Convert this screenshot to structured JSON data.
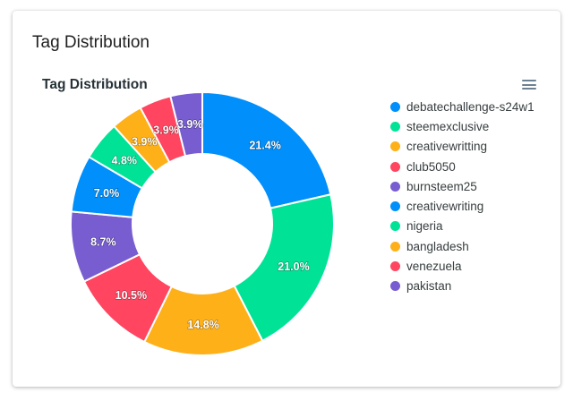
{
  "card": {
    "title": "Tag Distribution"
  },
  "chart_data": {
    "type": "pie",
    "variant": "donut",
    "title": "Tag Distribution",
    "legend_position": "right",
    "categories": [
      "debatechallenge-s24w1",
      "steemexclusive",
      "creativewritting",
      "club5050",
      "burnsteem25",
      "creativewriting",
      "nigeria",
      "bangladesh",
      "venezuela",
      "pakistan"
    ],
    "values": [
      21.4,
      21.0,
      14.8,
      10.5,
      8.7,
      7.0,
      4.8,
      3.9,
      3.9,
      3.9
    ],
    "labels": [
      "21.4%",
      "21.0%",
      "14.8%",
      "10.5%",
      "8.7%",
      "7.0%",
      "4.8%",
      "3.9%",
      "3.9%",
      "3.9%"
    ],
    "colors": [
      "#008ffb",
      "#00e396",
      "#feb019",
      "#ff4560",
      "#775dd0",
      "#008ffb",
      "#00e396",
      "#feb019",
      "#ff4560",
      "#775dd0"
    ]
  },
  "icons": {
    "menu": "hamburger-menu-icon"
  }
}
